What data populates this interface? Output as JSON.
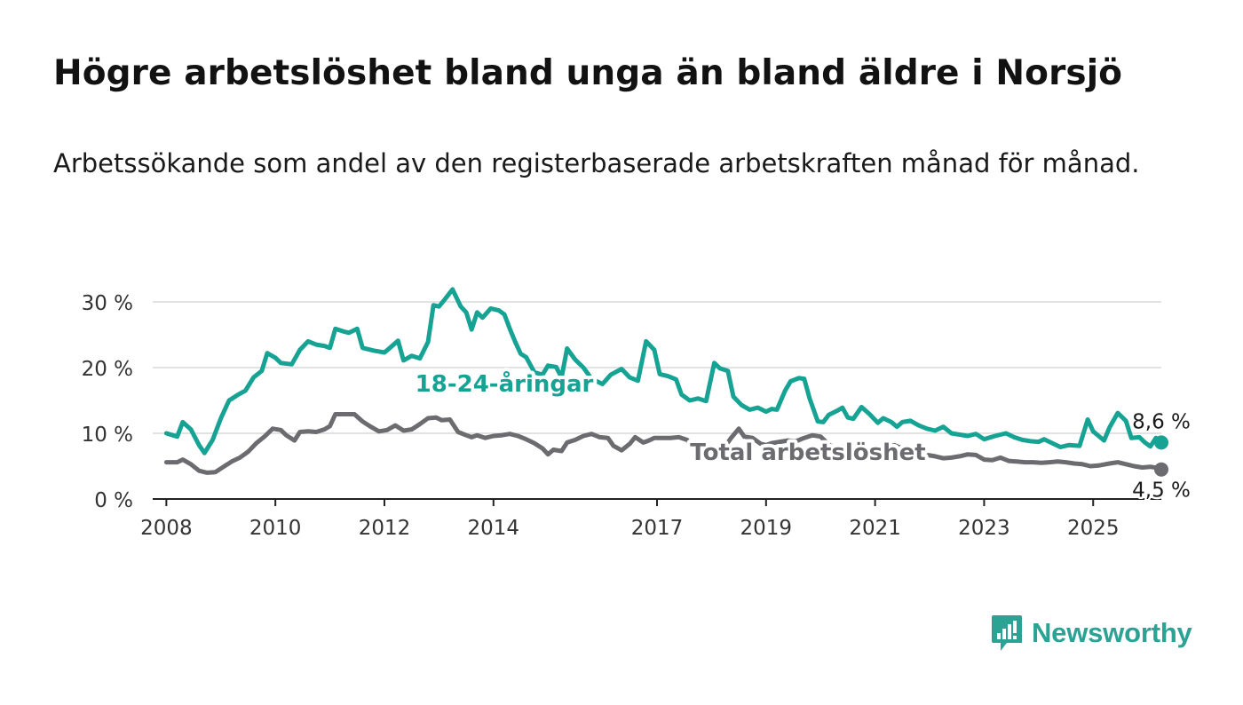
{
  "title": "Högre arbetslöshet bland unga än bland äldre i Norsjö",
  "subtitle": "Arbetssökande som andel av den registerbaserade arbetskraften månad för månad.",
  "brand": {
    "name": "Newsworthy",
    "icon": "newsworthy-logo-icon",
    "color": "#2aa394"
  },
  "chart_data": {
    "type": "line",
    "y_ticks": [
      {
        "value": 0,
        "label": "0 %"
      },
      {
        "value": 10,
        "label": "10 %"
      },
      {
        "value": 20,
        "label": "20 %"
      },
      {
        "value": 30,
        "label": "30 %"
      }
    ],
    "x_ticks": [
      {
        "value": 2008,
        "label": "2008"
      },
      {
        "value": 2010,
        "label": "2010"
      },
      {
        "value": 2012,
        "label": "2012"
      },
      {
        "value": 2014,
        "label": "2014"
      },
      {
        "value": 2017,
        "label": "2017"
      },
      {
        "value": 2019,
        "label": "2019"
      },
      {
        "value": 2021,
        "label": "2021"
      },
      {
        "value": 2023,
        "label": "2023"
      },
      {
        "value": 2025,
        "label": "2025"
      }
    ],
    "xlim": [
      2007.75,
      2026.25
    ],
    "ylim": [
      0,
      30
    ],
    "grid": true,
    "series": [
      {
        "name": "18-24-åringar",
        "color": "#16a394",
        "end_label": "8,6 %",
        "points": [
          [
            2008.0,
            10.0
          ],
          [
            2008.2,
            9.5
          ],
          [
            2008.3,
            11.7
          ],
          [
            2008.45,
            10.6
          ],
          [
            2008.6,
            8.2
          ],
          [
            2008.7,
            7.0
          ],
          [
            2008.85,
            9.0
          ],
          [
            2009.0,
            12.3
          ],
          [
            2009.15,
            15.0
          ],
          [
            2009.3,
            15.8
          ],
          [
            2009.45,
            16.5
          ],
          [
            2009.6,
            18.5
          ],
          [
            2009.75,
            19.5
          ],
          [
            2009.85,
            22.2
          ],
          [
            2010.0,
            21.5
          ],
          [
            2010.1,
            20.7
          ],
          [
            2010.3,
            20.5
          ],
          [
            2010.45,
            22.7
          ],
          [
            2010.6,
            24.0
          ],
          [
            2010.75,
            23.5
          ],
          [
            2010.9,
            23.3
          ],
          [
            2011.0,
            23.0
          ],
          [
            2011.1,
            25.9
          ],
          [
            2011.25,
            25.5
          ],
          [
            2011.35,
            25.3
          ],
          [
            2011.5,
            25.9
          ],
          [
            2011.6,
            23.0
          ],
          [
            2011.8,
            22.6
          ],
          [
            2012.0,
            22.3
          ],
          [
            2012.1,
            23.0
          ],
          [
            2012.25,
            24.1
          ],
          [
            2012.35,
            21.1
          ],
          [
            2012.5,
            21.8
          ],
          [
            2012.65,
            21.4
          ],
          [
            2012.8,
            23.9
          ],
          [
            2012.9,
            29.5
          ],
          [
            2013.0,
            29.3
          ],
          [
            2013.1,
            30.3
          ],
          [
            2013.25,
            31.9
          ],
          [
            2013.4,
            29.3
          ],
          [
            2013.5,
            28.4
          ],
          [
            2013.6,
            25.8
          ],
          [
            2013.7,
            28.4
          ],
          [
            2013.8,
            27.6
          ],
          [
            2013.95,
            29.0
          ],
          [
            2014.1,
            28.7
          ],
          [
            2014.2,
            28.1
          ],
          [
            2014.3,
            25.9
          ],
          [
            2014.4,
            23.9
          ],
          [
            2014.5,
            22.1
          ],
          [
            2014.6,
            21.6
          ],
          [
            2014.75,
            19.3
          ],
          [
            2014.9,
            18.9
          ],
          [
            2015.0,
            20.3
          ],
          [
            2015.15,
            20.1
          ],
          [
            2015.25,
            18.5
          ],
          [
            2015.35,
            22.9
          ],
          [
            2015.5,
            21.2
          ],
          [
            2015.65,
            20.0
          ],
          [
            2015.8,
            18.3
          ],
          [
            2016.0,
            17.5
          ],
          [
            2016.15,
            18.9
          ],
          [
            2016.35,
            19.8
          ],
          [
            2016.5,
            18.5
          ],
          [
            2016.65,
            18.0
          ],
          [
            2016.8,
            24.0
          ],
          [
            2016.95,
            22.7
          ],
          [
            2017.05,
            19.0
          ],
          [
            2017.2,
            18.7
          ],
          [
            2017.35,
            18.2
          ],
          [
            2017.45,
            15.9
          ],
          [
            2017.6,
            15.0
          ],
          [
            2017.75,
            15.3
          ],
          [
            2017.9,
            14.9
          ],
          [
            2018.05,
            20.7
          ],
          [
            2018.15,
            19.9
          ],
          [
            2018.3,
            19.5
          ],
          [
            2018.4,
            15.6
          ],
          [
            2018.55,
            14.3
          ],
          [
            2018.7,
            13.6
          ],
          [
            2018.85,
            13.9
          ],
          [
            2019.0,
            13.3
          ],
          [
            2019.1,
            13.7
          ],
          [
            2019.2,
            13.6
          ],
          [
            2019.35,
            16.5
          ],
          [
            2019.45,
            17.9
          ],
          [
            2019.6,
            18.4
          ],
          [
            2019.7,
            18.3
          ],
          [
            2019.8,
            15.3
          ],
          [
            2019.95,
            11.8
          ],
          [
            2020.05,
            11.7
          ],
          [
            2020.15,
            12.8
          ],
          [
            2020.3,
            13.4
          ],
          [
            2020.4,
            13.9
          ],
          [
            2020.5,
            12.4
          ],
          [
            2020.6,
            12.2
          ],
          [
            2020.75,
            14.0
          ],
          [
            2020.9,
            12.9
          ],
          [
            2021.05,
            11.6
          ],
          [
            2021.15,
            12.3
          ],
          [
            2021.3,
            11.7
          ],
          [
            2021.4,
            11.0
          ],
          [
            2021.5,
            11.7
          ],
          [
            2021.65,
            11.9
          ],
          [
            2021.8,
            11.2
          ],
          [
            2021.95,
            10.7
          ],
          [
            2022.1,
            10.4
          ],
          [
            2022.25,
            11.0
          ],
          [
            2022.4,
            10.0
          ],
          [
            2022.55,
            9.8
          ],
          [
            2022.7,
            9.6
          ],
          [
            2022.85,
            9.9
          ],
          [
            2023.0,
            9.1
          ],
          [
            2023.2,
            9.6
          ],
          [
            2023.4,
            10.0
          ],
          [
            2023.55,
            9.4
          ],
          [
            2023.7,
            9.0
          ],
          [
            2023.85,
            8.8
          ],
          [
            2024.0,
            8.7
          ],
          [
            2024.1,
            9.1
          ],
          [
            2024.25,
            8.5
          ],
          [
            2024.4,
            7.9
          ],
          [
            2024.55,
            8.2
          ],
          [
            2024.75,
            8.1
          ],
          [
            2024.9,
            12.1
          ],
          [
            2025.0,
            10.3
          ],
          [
            2025.1,
            9.6
          ],
          [
            2025.2,
            8.9
          ],
          [
            2025.3,
            10.9
          ],
          [
            2025.45,
            13.1
          ],
          [
            2025.6,
            11.9
          ],
          [
            2025.7,
            9.3
          ],
          [
            2025.85,
            9.4
          ],
          [
            2025.95,
            8.6
          ],
          [
            2026.05,
            8.0
          ],
          [
            2026.15,
            9.3
          ],
          [
            2026.25,
            8.6
          ]
        ]
      },
      {
        "name": "Total arbetslöshet",
        "color": "#6c6c70",
        "end_label": "4,5 %",
        "points": [
          [
            2008.0,
            5.6
          ],
          [
            2008.2,
            5.6
          ],
          [
            2008.3,
            6.0
          ],
          [
            2008.45,
            5.3
          ],
          [
            2008.6,
            4.3
          ],
          [
            2008.75,
            4.0
          ],
          [
            2008.9,
            4.1
          ],
          [
            2009.05,
            4.9
          ],
          [
            2009.2,
            5.7
          ],
          [
            2009.35,
            6.3
          ],
          [
            2009.5,
            7.2
          ],
          [
            2009.65,
            8.5
          ],
          [
            2009.8,
            9.5
          ],
          [
            2009.95,
            10.7
          ],
          [
            2010.1,
            10.5
          ],
          [
            2010.2,
            9.7
          ],
          [
            2010.35,
            8.9
          ],
          [
            2010.45,
            10.2
          ],
          [
            2010.6,
            10.3
          ],
          [
            2010.75,
            10.2
          ],
          [
            2010.9,
            10.6
          ],
          [
            2011.0,
            11.1
          ],
          [
            2011.1,
            12.9
          ],
          [
            2011.3,
            12.9
          ],
          [
            2011.45,
            12.9
          ],
          [
            2011.6,
            11.8
          ],
          [
            2011.75,
            11.0
          ],
          [
            2011.9,
            10.3
          ],
          [
            2012.05,
            10.5
          ],
          [
            2012.2,
            11.2
          ],
          [
            2012.35,
            10.4
          ],
          [
            2012.5,
            10.6
          ],
          [
            2012.65,
            11.4
          ],
          [
            2012.8,
            12.3
          ],
          [
            2012.95,
            12.4
          ],
          [
            2013.05,
            12.0
          ],
          [
            2013.2,
            12.1
          ],
          [
            2013.35,
            10.2
          ],
          [
            2013.5,
            9.7
          ],
          [
            2013.6,
            9.4
          ],
          [
            2013.7,
            9.7
          ],
          [
            2013.85,
            9.3
          ],
          [
            2014.0,
            9.6
          ],
          [
            2014.15,
            9.7
          ],
          [
            2014.3,
            9.9
          ],
          [
            2014.45,
            9.6
          ],
          [
            2014.6,
            9.1
          ],
          [
            2014.75,
            8.5
          ],
          [
            2014.9,
            7.7
          ],
          [
            2015.0,
            6.8
          ],
          [
            2015.1,
            7.5
          ],
          [
            2015.25,
            7.3
          ],
          [
            2015.35,
            8.6
          ],
          [
            2015.5,
            9.0
          ],
          [
            2015.65,
            9.6
          ],
          [
            2015.8,
            9.9
          ],
          [
            2015.95,
            9.4
          ],
          [
            2016.1,
            9.3
          ],
          [
            2016.2,
            8.1
          ],
          [
            2016.35,
            7.4
          ],
          [
            2016.5,
            8.4
          ],
          [
            2016.6,
            9.4
          ],
          [
            2016.75,
            8.6
          ],
          [
            2016.85,
            8.9
          ],
          [
            2016.95,
            9.3
          ],
          [
            2017.1,
            9.3
          ],
          [
            2017.25,
            9.3
          ],
          [
            2017.4,
            9.4
          ],
          [
            2017.55,
            9.0
          ],
          [
            2017.65,
            7.9
          ],
          [
            2017.8,
            6.9
          ],
          [
            2017.95,
            7.5
          ],
          [
            2018.05,
            7.5
          ],
          [
            2018.2,
            7.4
          ],
          [
            2018.35,
            9.2
          ],
          [
            2018.5,
            10.7
          ],
          [
            2018.6,
            9.5
          ],
          [
            2018.75,
            9.3
          ],
          [
            2018.9,
            8.4
          ],
          [
            2019.0,
            8.2
          ],
          [
            2019.1,
            8.5
          ],
          [
            2019.25,
            8.7
          ],
          [
            2019.4,
            8.9
          ],
          [
            2019.55,
            8.8
          ],
          [
            2019.7,
            9.3
          ],
          [
            2019.85,
            9.7
          ],
          [
            2020.0,
            9.5
          ],
          [
            2020.15,
            8.3
          ],
          [
            2020.3,
            7.5
          ],
          [
            2020.45,
            8.1
          ],
          [
            2020.6,
            8.6
          ],
          [
            2020.75,
            8.0
          ],
          [
            2020.9,
            7.5
          ],
          [
            2021.05,
            7.5
          ],
          [
            2021.2,
            8.0
          ],
          [
            2021.35,
            8.2
          ],
          [
            2021.5,
            7.7
          ],
          [
            2021.65,
            7.3
          ],
          [
            2021.8,
            7.0
          ],
          [
            2021.95,
            6.7
          ],
          [
            2022.1,
            6.5
          ],
          [
            2022.25,
            6.2
          ],
          [
            2022.4,
            6.3
          ],
          [
            2022.55,
            6.5
          ],
          [
            2022.7,
            6.8
          ],
          [
            2022.85,
            6.7
          ],
          [
            2023.0,
            6.0
          ],
          [
            2023.15,
            5.9
          ],
          [
            2023.3,
            6.3
          ],
          [
            2023.45,
            5.8
          ],
          [
            2023.6,
            5.7
          ],
          [
            2023.75,
            5.6
          ],
          [
            2023.9,
            5.6
          ],
          [
            2024.05,
            5.5
          ],
          [
            2024.2,
            5.6
          ],
          [
            2024.35,
            5.7
          ],
          [
            2024.5,
            5.6
          ],
          [
            2024.65,
            5.4
          ],
          [
            2024.8,
            5.3
          ],
          [
            2024.95,
            5.0
          ],
          [
            2025.1,
            5.1
          ],
          [
            2025.3,
            5.4
          ],
          [
            2025.45,
            5.6
          ],
          [
            2025.6,
            5.3
          ],
          [
            2025.75,
            5.0
          ],
          [
            2025.9,
            4.8
          ],
          [
            2026.05,
            4.9
          ],
          [
            2026.2,
            4.7
          ],
          [
            2026.25,
            4.5
          ]
        ]
      }
    ]
  }
}
